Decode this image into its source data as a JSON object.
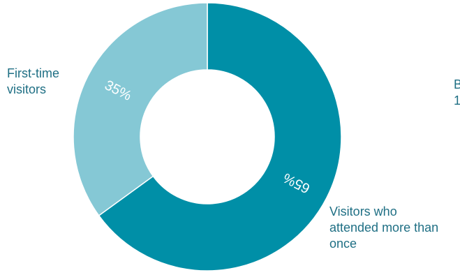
{
  "chart_data": {
    "type": "pie",
    "title": "",
    "categories": [
      "First-time visitors",
      "Visitors who attended more than once"
    ],
    "values": [
      35,
      65
    ],
    "value_labels": [
      "35%",
      "65%"
    ],
    "colors": [
      "#85c8d5",
      "#008fa7"
    ],
    "donut": true,
    "legend": "none",
    "category_label_lines": [
      [
        "First-time",
        "visitors"
      ],
      [
        "Visitors who",
        "attended more than",
        "once"
      ]
    ]
  },
  "clipped_text": [
    "B",
    "1"
  ]
}
